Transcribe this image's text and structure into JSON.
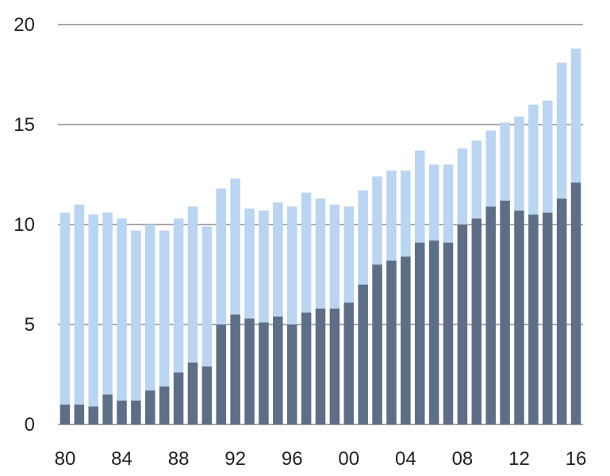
{
  "chart_data": {
    "type": "bar",
    "stacked": true,
    "title": "",
    "xlabel": "",
    "ylabel": "",
    "ylim": [
      0,
      20
    ],
    "yticks": [
      "0",
      "5",
      "10",
      "15",
      "20"
    ],
    "x_tick_labels": [
      "80",
      "84",
      "88",
      "92",
      "96",
      "00",
      "04",
      "08",
      "12",
      "16"
    ],
    "x": [
      1980,
      1981,
      1982,
      1983,
      1984,
      1985,
      1986,
      1987,
      1988,
      1989,
      1990,
      1991,
      1992,
      1993,
      1994,
      1995,
      1996,
      1997,
      1998,
      1999,
      2000,
      2001,
      2002,
      2003,
      2004,
      2005,
      2006,
      2007,
      2008,
      2009,
      2010,
      2011,
      2012,
      2013,
      2014,
      2015,
      2016
    ],
    "grid": true,
    "legend": "none",
    "series": [
      {
        "color": "#5d6f86",
        "values": [
          1.0,
          1.0,
          0.9,
          1.5,
          1.2,
          1.2,
          1.7,
          1.9,
          2.6,
          3.1,
          2.9,
          5.0,
          5.5,
          5.3,
          5.1,
          5.4,
          5.0,
          5.6,
          5.8,
          5.8,
          6.1,
          7.0,
          8.0,
          8.2,
          8.4,
          9.1,
          9.2,
          9.1,
          10.0,
          10.3,
          10.9,
          11.2,
          10.7,
          10.5,
          10.6,
          11.3,
          12.1
        ]
      },
      {
        "color": "#b9d5f1",
        "values": [
          9.6,
          10.0,
          9.6,
          9.1,
          9.1,
          8.5,
          8.3,
          7.8,
          7.7,
          7.8,
          7.0,
          6.8,
          6.8,
          5.5,
          5.6,
          5.7,
          5.9,
          6.0,
          5.5,
          5.2,
          4.8,
          4.7,
          4.4,
          4.5,
          4.3,
          4.6,
          3.8,
          3.9,
          3.8,
          3.9,
          3.8,
          3.9,
          4.7,
          5.5,
          5.6,
          6.8,
          6.7
        ]
      }
    ]
  }
}
